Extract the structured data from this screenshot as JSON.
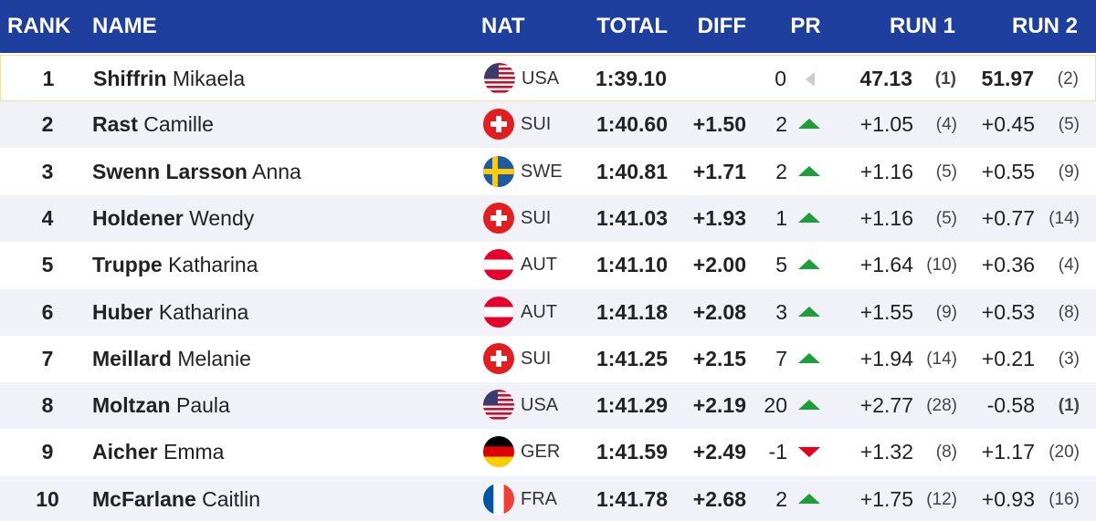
{
  "columns": [
    "RANK",
    "NAME",
    "NAT",
    "TOTAL",
    "DIFF",
    "PR",
    "RUN 1",
    "RUN 2"
  ],
  "rows": [
    {
      "rank": 1,
      "last": "Shiffrin",
      "first": "Mikaela",
      "nat": "USA",
      "total": "1:39.10",
      "diff": null,
      "pr": 0,
      "trend": "same",
      "run1": "47.13",
      "run1_rank": "(1)",
      "run1_best": true,
      "run2": "51.97",
      "run2_rank": "(2)",
      "run2_best": false,
      "highlight": true
    },
    {
      "rank": 2,
      "last": "Rast",
      "first": "Camille",
      "nat": "SUI",
      "total": "1:40.60",
      "diff": "+1.50",
      "pr": 2,
      "trend": "up",
      "run1": "+1.05",
      "run1_rank": "(4)",
      "run1_best": false,
      "run2": "+0.45",
      "run2_rank": "(5)",
      "run2_best": false,
      "highlight": false
    },
    {
      "rank": 3,
      "last": "Swenn Larsson",
      "first": "Anna",
      "nat": "SWE",
      "total": "1:40.81",
      "diff": "+1.71",
      "pr": 2,
      "trend": "up",
      "run1": "+1.16",
      "run1_rank": "(5)",
      "run1_best": false,
      "run2": "+0.55",
      "run2_rank": "(9)",
      "run2_best": false,
      "highlight": false
    },
    {
      "rank": 4,
      "last": "Holdener",
      "first": "Wendy",
      "nat": "SUI",
      "total": "1:41.03",
      "diff": "+1.93",
      "pr": 1,
      "trend": "up",
      "run1": "+1.16",
      "run1_rank": "(5)",
      "run1_best": false,
      "run2": "+0.77",
      "run2_rank": "(14)",
      "run2_best": false,
      "highlight": false
    },
    {
      "rank": 5,
      "last": "Truppe",
      "first": "Katharina",
      "nat": "AUT",
      "total": "1:41.10",
      "diff": "+2.00",
      "pr": 5,
      "trend": "up",
      "run1": "+1.64",
      "run1_rank": "(10)",
      "run1_best": false,
      "run2": "+0.36",
      "run2_rank": "(4)",
      "run2_best": false,
      "highlight": false
    },
    {
      "rank": 6,
      "last": "Huber",
      "first": "Katharina",
      "nat": "AUT",
      "total": "1:41.18",
      "diff": "+2.08",
      "pr": 3,
      "trend": "up",
      "run1": "+1.55",
      "run1_rank": "(9)",
      "run1_best": false,
      "run2": "+0.53",
      "run2_rank": "(8)",
      "run2_best": false,
      "highlight": false
    },
    {
      "rank": 7,
      "last": "Meillard",
      "first": "Melanie",
      "nat": "SUI",
      "total": "1:41.25",
      "diff": "+2.15",
      "pr": 7,
      "trend": "up",
      "run1": "+1.94",
      "run1_rank": "(14)",
      "run1_best": false,
      "run2": "+0.21",
      "run2_rank": "(3)",
      "run2_best": false,
      "highlight": false
    },
    {
      "rank": 8,
      "last": "Moltzan",
      "first": "Paula",
      "nat": "USA",
      "total": "1:41.29",
      "diff": "+2.19",
      "pr": 20,
      "trend": "up",
      "run1": "+2.77",
      "run1_rank": "(28)",
      "run1_best": false,
      "run2": "-0.58",
      "run2_rank": "(1)",
      "run2_best": true,
      "highlight": false
    },
    {
      "rank": 9,
      "last": "Aicher",
      "first": "Emma",
      "nat": "GER",
      "total": "1:41.59",
      "diff": "+2.49",
      "pr": -1,
      "trend": "down",
      "run1": "+1.32",
      "run1_rank": "(8)",
      "run1_best": false,
      "run2": "+1.17",
      "run2_rank": "(20)",
      "run2_best": false,
      "highlight": false
    },
    {
      "rank": 10,
      "last": "McFarlane",
      "first": "Caitlin",
      "nat": "FRA",
      "total": "1:41.78",
      "diff": "+2.68",
      "pr": 2,
      "trend": "up",
      "run1": "+1.75",
      "run1_rank": "(12)",
      "run1_best": false,
      "run2": "+0.93",
      "run2_rank": "(16)",
      "run2_best": false,
      "highlight": false
    }
  ]
}
